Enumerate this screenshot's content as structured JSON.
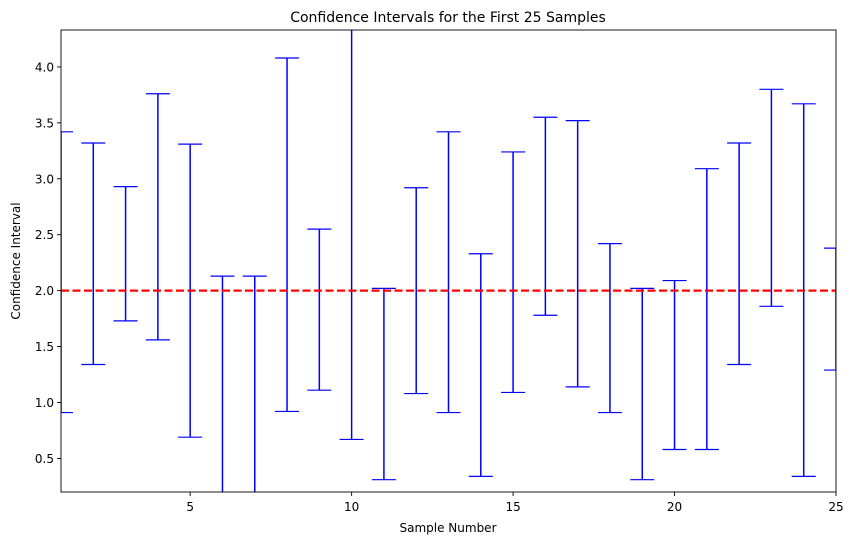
{
  "chart_data": {
    "type": "errorbar",
    "title": "Confidence Intervals for the First 25 Samples",
    "xlabel": "Sample Number",
    "ylabel": "Confidence Interval",
    "xlim": [
      1,
      25
    ],
    "ylim": [
      0.2,
      4.33
    ],
    "xticks": [
      5,
      10,
      15,
      20,
      25
    ],
    "yticks": [
      0.5,
      1.0,
      1.5,
      2.0,
      2.5,
      3.0,
      3.5,
      4.0
    ],
    "xtick_labels": [
      "5",
      "10",
      "15",
      "20",
      "25"
    ],
    "ytick_labels": [
      "0.5",
      "1.0",
      "1.5",
      "2.0",
      "2.5",
      "3.0",
      "3.5",
      "4.0"
    ],
    "reference_line": {
      "y": 2.0,
      "color": "#ff0000",
      "style": "dashed"
    },
    "interval_color": "#0000ff",
    "grid": false,
    "intervals": [
      {
        "sample": 1,
        "lower": 0.91,
        "upper": 3.42
      },
      {
        "sample": 2,
        "lower": 1.34,
        "upper": 3.32
      },
      {
        "sample": 3,
        "lower": 1.73,
        "upper": 2.93
      },
      {
        "sample": 4,
        "lower": 1.56,
        "upper": 3.76
      },
      {
        "sample": 5,
        "lower": 0.69,
        "upper": 3.31
      },
      {
        "sample": 6,
        "lower": 0.18,
        "upper": 2.13
      },
      {
        "sample": 7,
        "lower": 0.18,
        "upper": 2.13
      },
      {
        "sample": 8,
        "lower": 0.92,
        "upper": 4.08
      },
      {
        "sample": 9,
        "lower": 1.11,
        "upper": 2.55
      },
      {
        "sample": 10,
        "lower": 0.67,
        "upper": 4.36
      },
      {
        "sample": 11,
        "lower": 0.31,
        "upper": 2.02
      },
      {
        "sample": 12,
        "lower": 1.08,
        "upper": 2.92
      },
      {
        "sample": 13,
        "lower": 0.91,
        "upper": 3.42
      },
      {
        "sample": 14,
        "lower": 0.34,
        "upper": 2.33
      },
      {
        "sample": 15,
        "lower": 1.09,
        "upper": 3.24
      },
      {
        "sample": 16,
        "lower": 1.78,
        "upper": 3.55
      },
      {
        "sample": 17,
        "lower": 1.14,
        "upper": 3.52
      },
      {
        "sample": 18,
        "lower": 0.91,
        "upper": 2.42
      },
      {
        "sample": 19,
        "lower": 0.31,
        "upper": 2.02
      },
      {
        "sample": 20,
        "lower": 0.58,
        "upper": 2.09
      },
      {
        "sample": 21,
        "lower": 0.58,
        "upper": 3.09
      },
      {
        "sample": 22,
        "lower": 1.34,
        "upper": 3.32
      },
      {
        "sample": 23,
        "lower": 1.86,
        "upper": 3.8
      },
      {
        "sample": 24,
        "lower": 0.34,
        "upper": 3.67
      },
      {
        "sample": 25,
        "lower": 1.29,
        "upper": 2.38
      }
    ]
  }
}
